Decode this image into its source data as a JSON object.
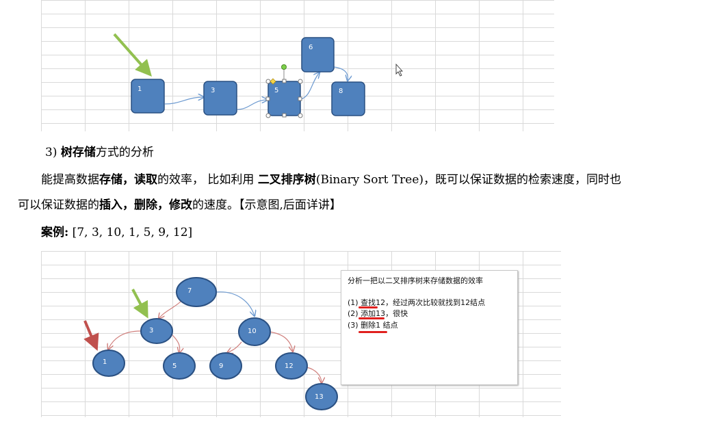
{
  "diagram_top": {
    "nodes": [
      {
        "id": "n1",
        "label": "1"
      },
      {
        "id": "n3",
        "label": "3"
      },
      {
        "id": "n5",
        "label": "5"
      },
      {
        "id": "n6",
        "label": "6"
      },
      {
        "id": "n8",
        "label": "8"
      }
    ]
  },
  "section": {
    "number": "3)",
    "title_bold": "树存储",
    "title_rest": "方式的分析"
  },
  "paragraph": {
    "line1_a": "能提高数据",
    "line1_b": "存储，读取",
    "line1_c": "的效率，  比如利用 ",
    "line1_d": "二叉排序树",
    "line1_e": "(Binary Sort Tree)，既可以保证数据的检索速度，同时也",
    "line2_a": "可以保证数据的",
    "line2_b": "插入，删除，修改",
    "line2_c": "的速度。【示意图,后面详讲】"
  },
  "example": {
    "label": "案例:",
    "values": " [7, 3, 10, 1, 5, 9, 12]"
  },
  "diagram_bottom": {
    "nodes": [
      {
        "id": "b7",
        "label": "7"
      },
      {
        "id": "b3",
        "label": "3"
      },
      {
        "id": "b10",
        "label": "10"
      },
      {
        "id": "b1",
        "label": "1"
      },
      {
        "id": "b5",
        "label": "5"
      },
      {
        "id": "b9",
        "label": "9"
      },
      {
        "id": "b12",
        "label": "12"
      },
      {
        "id": "b13",
        "label": "13"
      }
    ]
  },
  "info_box": {
    "title": "分析一把以二叉排序树来存储数据的效率",
    "item1": "(1) 查找12，经过两次比较就找到12结点",
    "item2": "(2) 添加13，很快",
    "item3": "(3) 删除1 结点"
  },
  "colors": {
    "node_fill": "#4f81bd",
    "node_stroke": "#2a5082",
    "arrow_green": "#92c050",
    "arrow_red": "#c0504d",
    "edge_blue": "#6d9ad0",
    "edge_red": "#d07f7c"
  }
}
